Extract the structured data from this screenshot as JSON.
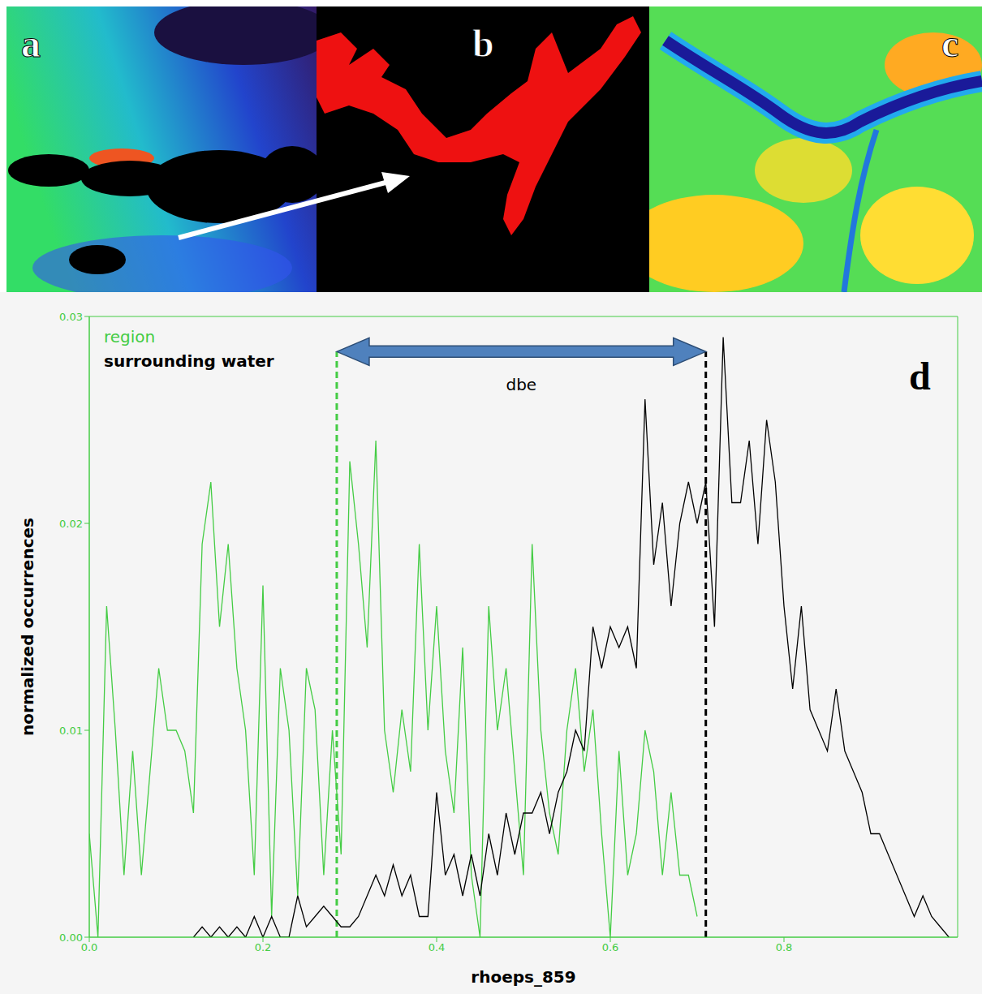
{
  "panels": [
    {
      "label": "a"
    },
    {
      "label": "b"
    },
    {
      "label": "c"
    }
  ],
  "chart_data": {
    "type": "line",
    "panel_label": "d",
    "x_label": "rhoeps_859",
    "y_label": "normalized occurrences",
    "x": [
      0,
      0.01,
      0.02,
      0.03,
      0.04,
      0.05,
      0.06,
      0.07,
      0.08,
      0.09,
      0.1,
      0.11,
      0.12,
      0.13,
      0.14,
      0.15,
      0.16,
      0.17,
      0.18,
      0.19,
      0.2,
      0.21,
      0.22,
      0.23,
      0.24,
      0.25,
      0.26,
      0.27,
      0.28,
      0.29,
      0.3,
      0.31,
      0.32,
      0.33,
      0.34,
      0.35,
      0.36,
      0.37,
      0.38,
      0.39,
      0.4,
      0.41,
      0.42,
      0.43,
      0.44,
      0.45,
      0.46,
      0.47,
      0.48,
      0.49,
      0.5,
      0.51,
      0.52,
      0.53,
      0.54,
      0.55,
      0.56,
      0.57,
      0.58,
      0.59,
      0.6,
      0.61,
      0.62,
      0.63,
      0.64,
      0.65,
      0.66,
      0.67,
      0.68,
      0.69,
      0.7,
      0.71,
      0.72,
      0.73,
      0.74,
      0.75,
      0.76,
      0.77,
      0.78,
      0.79,
      0.8,
      0.81,
      0.82,
      0.83,
      0.84,
      0.85,
      0.86,
      0.87,
      0.88,
      0.89,
      0.9,
      0.91,
      0.92,
      0.93,
      0.94,
      0.95,
      0.96,
      0.97,
      0.98,
      0.99
    ],
    "series": [
      {
        "name": "region",
        "color": "#44cc44",
        "values": [
          0.005,
          0,
          0.016,
          0.01,
          0.003,
          0.009,
          0.003,
          0.008,
          0.013,
          0.01,
          0.01,
          0.009,
          0.006,
          0.019,
          0.022,
          0.015,
          0.019,
          0.013,
          0.01,
          0.003,
          0.017,
          0.001,
          0.013,
          0.01,
          0.002,
          0.013,
          0.011,
          0.003,
          0.01,
          0.004,
          0.023,
          0.019,
          0.014,
          0.024,
          0.01,
          0.007,
          0.011,
          0.008,
          0.019,
          0.01,
          0.016,
          0.009,
          0.006,
          0.014,
          0.003,
          0,
          0.016,
          0.01,
          0.013,
          0.008,
          0.003,
          0.019,
          0.01,
          0.006,
          0.004,
          0.01,
          0.013,
          0.008,
          0.011,
          0.005,
          0,
          0.009,
          0.003,
          0.005,
          0.01,
          0.008,
          0.003,
          0.007,
          0.003,
          0.003,
          0.001,
          null,
          null,
          null,
          null,
          null,
          null,
          null,
          null,
          null,
          null,
          null,
          null,
          null,
          null,
          null,
          null,
          null,
          null,
          null,
          null,
          null,
          null,
          null,
          null,
          null,
          null,
          null,
          null,
          null
        ]
      },
      {
        "name": "surrounding water",
        "color": "#000000",
        "values": [
          null,
          null,
          null,
          null,
          null,
          null,
          null,
          null,
          null,
          null,
          null,
          null,
          0,
          0.0005,
          0,
          0.0005,
          0,
          0.0005,
          0,
          0.001,
          0,
          0.001,
          0,
          0,
          0.002,
          0.0005,
          0.001,
          0.0015,
          0.001,
          0.0005,
          0.0005,
          0.001,
          0.002,
          0.003,
          0.002,
          0.0035,
          0.002,
          0.003,
          0.001,
          0.001,
          0.007,
          0.003,
          0.004,
          0.002,
          0.004,
          0.002,
          0.005,
          0.003,
          0.006,
          0.004,
          0.006,
          0.006,
          0.007,
          0.005,
          0.007,
          0.008,
          0.01,
          0.009,
          0.015,
          0.013,
          0.015,
          0.014,
          0.015,
          0.013,
          0.026,
          0.018,
          0.021,
          0.016,
          0.02,
          0.022,
          0.02,
          0.022,
          0.015,
          0.029,
          0.021,
          0.021,
          0.024,
          0.019,
          0.025,
          0.022,
          0.016,
          0.012,
          0.016,
          0.011,
          0.01,
          0.009,
          0.012,
          0.009,
          0.008,
          0.007,
          0.005,
          0.005,
          0.004,
          0.003,
          0.002,
          0.001,
          0.002,
          0.001,
          0.0005,
          0
        ]
      }
    ],
    "xlim": [
      0,
      1
    ],
    "xticks": [
      {
        "value": 0,
        "label": "0.0"
      },
      0.2,
      0.4,
      0.6,
      0.8
    ],
    "ylim": [
      0,
      0.03
    ],
    "yticks": [
      {
        "value": 0,
        "label": "0.00"
      },
      0.01,
      0.02,
      0.03
    ],
    "grid": false,
    "legend": "upper left",
    "annotations": [
      {
        "text": "dbe",
        "x": [
          0.285,
          0.71
        ],
        "y": 0.0283
      }
    ],
    "vlines": [
      {
        "x": 0.285,
        "color": "#44cc44",
        "line_style": "dashed"
      },
      {
        "x": 0.71,
        "color": "#000000",
        "line_style": "dashed"
      }
    ]
  }
}
